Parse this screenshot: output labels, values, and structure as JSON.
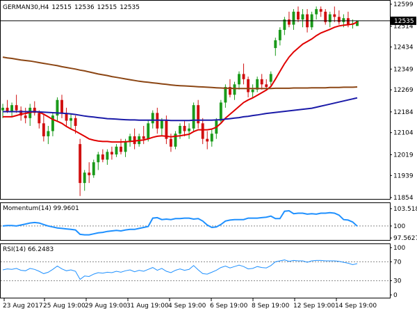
{
  "chart_data": [
    {
      "type": "candlestick",
      "title": "GERMAN30,H4",
      "ohlc_header": [
        "12515",
        "12536",
        "12515",
        "12535"
      ],
      "current_price_label": "12535",
      "y_ticks": [
        "12599",
        "12514",
        "12434",
        "12349",
        "12269",
        "12184",
        "12104",
        "12019",
        "11939",
        "11854"
      ],
      "ylim": [
        11854,
        12599
      ],
      "x_ticks": [
        "23 Aug 2017",
        "25 Aug 19:00",
        "29 Aug 19:00",
        "31 Aug 19:00",
        "4 Sep 19:00",
        "6 Sep 19:00",
        "8 Sep 19:00",
        "12 Sep 19:00",
        "14 Sep 19:00"
      ],
      "candles": [
        [
          12190,
          12215,
          12160,
          12200
        ],
        [
          12200,
          12230,
          12180,
          12185
        ],
        [
          12185,
          12220,
          12165,
          12210
        ],
        [
          12210,
          12250,
          12180,
          12190
        ],
        [
          12190,
          12205,
          12150,
          12170
        ],
        [
          12170,
          12200,
          12140,
          12160
        ],
        [
          12160,
          12215,
          12130,
          12200
        ],
        [
          12200,
          12225,
          12170,
          12180
        ],
        [
          12180,
          12190,
          12120,
          12140
        ],
        [
          12140,
          12175,
          12070,
          12090
        ],
        [
          12090,
          12130,
          12060,
          12110
        ],
        [
          12110,
          12180,
          12090,
          12170
        ],
        [
          12170,
          12240,
          12150,
          12230
        ],
        [
          12230,
          12250,
          12160,
          12180
        ],
        [
          12180,
          12200,
          12130,
          12150
        ],
        [
          12150,
          12175,
          12120,
          12160
        ],
        [
          12160,
          12170,
          12100,
          12130
        ],
        [
          12060,
          12080,
          11860,
          11910
        ],
        [
          11910,
          11960,
          11880,
          11950
        ],
        [
          11950,
          11990,
          11910,
          11940
        ],
        [
          11940,
          12000,
          11930,
          11990
        ],
        [
          11990,
          12030,
          11960,
          12020
        ],
        [
          12020,
          12040,
          11990,
          12000
        ],
        [
          12000,
          12040,
          11980,
          12030
        ],
        [
          12030,
          12050,
          12000,
          12020
        ],
        [
          12020,
          12060,
          12010,
          12050
        ],
        [
          12050,
          12080,
          12020,
          12030
        ],
        [
          12030,
          12080,
          12010,
          12070
        ],
        [
          12070,
          12100,
          12050,
          12090
        ],
        [
          12090,
          12120,
          12040,
          12060
        ],
        [
          12060,
          12100,
          12050,
          12090
        ],
        [
          12090,
          12130,
          12060,
          12080
        ],
        [
          12080,
          12150,
          12070,
          12140
        ],
        [
          12140,
          12190,
          12120,
          12180
        ],
        [
          12180,
          12200,
          12100,
          12120
        ],
        [
          12120,
          12160,
          12090,
          12150
        ],
        [
          12150,
          12170,
          12060,
          12080
        ],
        [
          12080,
          12100,
          12030,
          12050
        ],
        [
          12050,
          12110,
          12040,
          12100
        ],
        [
          12100,
          12140,
          12080,
          12130
        ],
        [
          12130,
          12150,
          12090,
          12110
        ],
        [
          12110,
          12140,
          12080,
          12120
        ],
        [
          12120,
          12220,
          12110,
          12210
        ],
        [
          12210,
          12230,
          12120,
          12140
        ],
        [
          12140,
          12160,
          12060,
          12080
        ],
        [
          12080,
          12110,
          12040,
          12070
        ],
        [
          12070,
          12120,
          12050,
          12100
        ],
        [
          12100,
          12160,
          12080,
          12150
        ],
        [
          12150,
          12230,
          12140,
          12220
        ],
        [
          12220,
          12290,
          12200,
          12280
        ],
        [
          12280,
          12310,
          12240,
          12250
        ],
        [
          12250,
          12300,
          12230,
          12290
        ],
        [
          12290,
          12340,
          12270,
          12330
        ],
        [
          12330,
          12370,
          12290,
          12310
        ],
        [
          12310,
          12320,
          12240,
          12260
        ],
        [
          12260,
          12290,
          12240,
          12270
        ],
        [
          12270,
          12320,
          12260,
          12310
        ],
        [
          12310,
          12330,
          12270,
          12290
        ],
        [
          12290,
          12310,
          12270,
          12280
        ],
        [
          12300,
          12340,
          12280,
          12330
        ],
        [
          12430,
          12470,
          12400,
          12460
        ],
        [
          12460,
          12510,
          12440,
          12500
        ],
        [
          12500,
          12550,
          12480,
          12540
        ],
        [
          12540,
          12570,
          12510,
          12520
        ],
        [
          12520,
          12580,
          12500,
          12570
        ],
        [
          12570,
          12590,
          12530,
          12540
        ],
        [
          12540,
          12580,
          12510,
          12560
        ],
        [
          12560,
          12580,
          12490,
          12510
        ],
        [
          12510,
          12570,
          12500,
          12560
        ],
        [
          12560,
          12590,
          12540,
          12580
        ],
        [
          12580,
          12590,
          12550,
          12570
        ],
        [
          12570,
          12580,
          12520,
          12530
        ],
        [
          12530,
          12570,
          12510,
          12560
        ],
        [
          12560,
          12590,
          12530,
          12550
        ],
        [
          12550,
          12575,
          12520,
          12530
        ],
        [
          12530,
          12560,
          12510,
          12545
        ],
        [
          12545,
          12570,
          12510,
          12520
        ],
        [
          12520,
          12540,
          12505,
          12525
        ],
        [
          12515,
          12536,
          12515,
          12535
        ]
      ],
      "series": [
        {
          "color": "#e00000",
          "values": [
            12165,
            12165,
            12165,
            12170,
            12175,
            12178,
            12182,
            12185,
            12183,
            12175,
            12165,
            12155,
            12148,
            12140,
            12128,
            12118,
            12110,
            12100,
            12090,
            12080,
            12075,
            12072,
            12070,
            12070,
            12068,
            12068,
            12068,
            12069,
            12070,
            12072,
            12074,
            12076,
            12080,
            12086,
            12090,
            12092,
            12090,
            12088,
            12090,
            12092,
            12095,
            12098,
            12108,
            12115,
            12115,
            12115,
            12118,
            12125,
            12140,
            12160,
            12175,
            12190,
            12205,
            12220,
            12230,
            12238,
            12248,
            12258,
            12268,
            12282,
            12310,
            12340,
            12370,
            12395,
            12415,
            12430,
            12445,
            12455,
            12465,
            12478,
            12488,
            12495,
            12502,
            12510,
            12515,
            12518,
            12520,
            12522,
            12530
          ]
        },
        {
          "color": "#1a1aa8",
          "values": [
            12185,
            12185,
            12185,
            12185,
            12185,
            12185,
            12185,
            12185,
            12184,
            12183,
            12182,
            12181,
            12180,
            12179,
            12178,
            12176,
            12174,
            12171,
            12168,
            12166,
            12164,
            12162,
            12160,
            12158,
            12157,
            12156,
            12155,
            12154,
            12153,
            12153,
            12152,
            12152,
            12152,
            12152,
            12152,
            12152,
            12152,
            12151,
            12151,
            12151,
            12151,
            12151,
            12152,
            12152,
            12152,
            12152,
            12152,
            12153,
            12154,
            12156,
            12158,
            12160,
            12162,
            12165,
            12167,
            12170,
            12172,
            12175,
            12178,
            12180,
            12182,
            12184,
            12186,
            12188,
            12190,
            12192,
            12194,
            12196,
            12198,
            12202,
            12206,
            12210,
            12214,
            12218,
            12222,
            12226,
            12230,
            12234,
            12238
          ]
        },
        {
          "color": "#8b4513",
          "values": [
            12395,
            12392,
            12390,
            12387,
            12384,
            12382,
            12380,
            12377,
            12374,
            12371,
            12368,
            12365,
            12362,
            12358,
            12355,
            12352,
            12349,
            12345,
            12342,
            12338,
            12334,
            12330,
            12327,
            12324,
            12320,
            12317,
            12314,
            12311,
            12308,
            12305,
            12302,
            12300,
            12298,
            12296,
            12294,
            12292,
            12290,
            12288,
            12286,
            12285,
            12284,
            12283,
            12282,
            12281,
            12280,
            12279,
            12278,
            12277,
            12276,
            12275,
            12275,
            12274,
            12274,
            12274,
            12274,
            12274,
            12274,
            12274,
            12274,
            12274,
            12275,
            12275,
            12275,
            12275,
            12276,
            12276,
            12276,
            12276,
            12277,
            12277,
            12277,
            12277,
            12278,
            12278,
            12278,
            12279,
            12279,
            12279,
            12280
          ]
        }
      ]
    },
    {
      "type": "line",
      "title": "Momentum(14) 99.9601",
      "y_ticks": [
        "103.5184",
        "100",
        "97.5627"
      ],
      "ylim": [
        97.3,
        103.8
      ],
      "reference_line": 100,
      "series": [
        {
          "color": "#1e90ff",
          "values": [
            100.0,
            100.1,
            100.1,
            100.0,
            100.2,
            100.4,
            100.6,
            100.7,
            100.6,
            100.3,
            100.0,
            99.8,
            99.6,
            99.5,
            99.4,
            99.3,
            99.2,
            98.3,
            98.2,
            98.2,
            98.4,
            98.6,
            98.7,
            98.9,
            99.0,
            99.1,
            99.0,
            99.2,
            99.3,
            99.3,
            99.5,
            99.7,
            99.9,
            101.6,
            101.7,
            101.3,
            101.4,
            101.3,
            101.5,
            101.5,
            101.6,
            101.6,
            101.4,
            101.5,
            101.0,
            100.2,
            99.7,
            99.8,
            100.3,
            101.0,
            101.2,
            101.3,
            101.3,
            101.3,
            101.6,
            101.6,
            101.6,
            101.7,
            101.8,
            102.0,
            101.5,
            101.5,
            103.0,
            103.1,
            102.5,
            102.6,
            102.6,
            102.4,
            102.5,
            102.4,
            102.6,
            102.6,
            102.7,
            102.6,
            102.2,
            101.3,
            101.2,
            100.8,
            99.96
          ]
        }
      ]
    },
    {
      "type": "line",
      "title": "RSI(14) 66.2483",
      "y_ticks": [
        "100",
        "70",
        "30",
        "0"
      ],
      "ylim": [
        0,
        100
      ],
      "reference_lines": [
        70,
        30
      ],
      "series": [
        {
          "color": "#1e90ff",
          "values": [
            53,
            55,
            54,
            56,
            52,
            51,
            56,
            54,
            50,
            45,
            48,
            54,
            61,
            55,
            51,
            53,
            50,
            33,
            40,
            39,
            44,
            47,
            46,
            48,
            47,
            50,
            48,
            51,
            53,
            49,
            52,
            50,
            54,
            58,
            52,
            56,
            50,
            47,
            52,
            55,
            52,
            54,
            62,
            53,
            45,
            44,
            48,
            52,
            58,
            61,
            57,
            60,
            63,
            60,
            55,
            56,
            60,
            58,
            57,
            62,
            70,
            72,
            74,
            71,
            73,
            72,
            72,
            69,
            72,
            73,
            73,
            72,
            72,
            72,
            71,
            69,
            67,
            64,
            66.2483
          ]
        }
      ]
    }
  ]
}
